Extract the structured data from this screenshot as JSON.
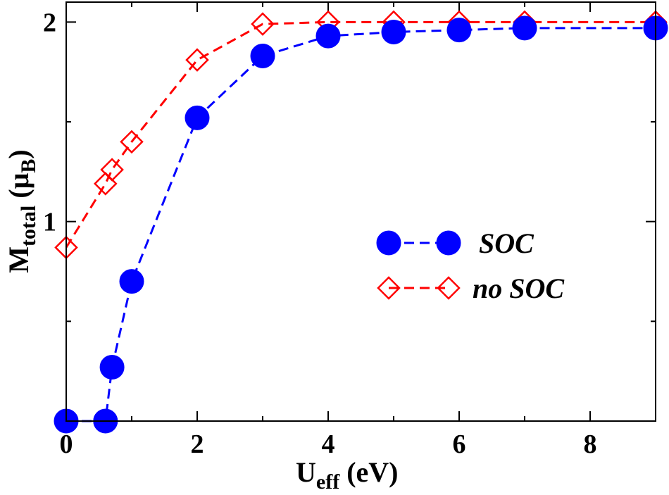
{
  "chart_data": {
    "type": "line",
    "xlabel": {
      "main": "U",
      "sub": "eff",
      "unit": " (eV)"
    },
    "ylabel": {
      "main": "M",
      "sub": "total",
      "unit_open": " (μ",
      "unit_sub": "B",
      "unit_close": ")"
    },
    "xlim": [
      0,
      9
    ],
    "ylim": [
      0,
      2.1
    ],
    "x_ticks": [
      0,
      2,
      4,
      6,
      8
    ],
    "x_minor_ticks": [
      1,
      3,
      5,
      7,
      9
    ],
    "y_ticks": [
      1,
      2
    ],
    "y_minor_ticks": [
      0.5,
      1.5
    ],
    "grid": false,
    "legend_position": "center-right",
    "series": [
      {
        "name": "SOC",
        "color": "#0000ff",
        "marker": "filled-circle",
        "line": "dashed",
        "x": [
          0,
          0.6,
          0.7,
          1,
          2,
          3,
          4,
          5,
          6,
          7,
          9
        ],
        "y": [
          0.0,
          0.0,
          0.27,
          0.7,
          1.52,
          1.83,
          1.93,
          1.95,
          1.96,
          1.97,
          1.97
        ]
      },
      {
        "name": "no SOC",
        "color": "#ff0000",
        "marker": "open-diamond",
        "line": "dashed",
        "x": [
          0,
          0.6,
          0.7,
          1,
          2,
          3,
          4,
          5,
          6,
          7,
          9
        ],
        "y": [
          0.87,
          1.19,
          1.26,
          1.4,
          1.81,
          1.99,
          2.0,
          2.0,
          2.0,
          2.0,
          2.0
        ]
      }
    ]
  }
}
